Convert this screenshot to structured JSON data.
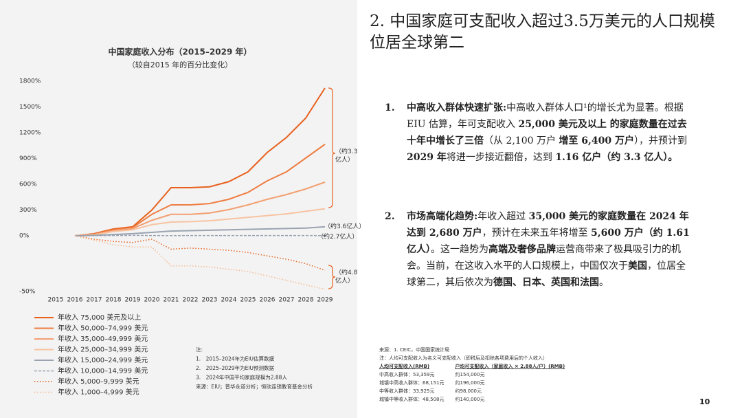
{
  "chart_data": {
    "type": "line",
    "title": "中国家庭收入分布（2015–2029 年）",
    "subtitle": "（较自2015 年的百分比变化）",
    "categories": [
      "2015",
      "2016",
      "2017",
      "2018",
      "2019",
      "2020",
      "2021",
      "2022",
      "2023",
      "2024",
      "2025",
      "2026",
      "2027",
      "2028",
      "2029"
    ],
    "ylim": [
      -50,
      1800
    ],
    "yticks": [
      {
        "value": 1800,
        "label": "1800%"
      },
      {
        "value": 1500,
        "label": "1500%"
      },
      {
        "value": 1200,
        "label": "1200%"
      },
      {
        "value": 900,
        "label": "900%"
      },
      {
        "value": 600,
        "label": "600%"
      },
      {
        "value": 300,
        "label": "300%"
      },
      {
        "value": 0,
        "label": "0%"
      },
      {
        "value": -50,
        "label": "-50%"
      }
    ],
    "series": [
      {
        "name": "年收入 75,000 美元及以上",
        "color": "#e8601c",
        "dash": "solid",
        "values": [
          null,
          0,
          25,
          80,
          105,
          300,
          560,
          560,
          570,
          630,
          745,
          970,
          1145,
          1370,
          1720
        ]
      },
      {
        "name": "年收入 50,000–74,999 美元",
        "color": "#ee7d42",
        "dash": "solid",
        "values": [
          null,
          0,
          20,
          70,
          95,
          250,
          360,
          360,
          375,
          425,
          505,
          640,
          745,
          905,
          1065
        ]
      },
      {
        "name": "年收入 35,000–49,999 美元",
        "color": "#f29f70",
        "dash": "solid",
        "values": [
          null,
          0,
          15,
          60,
          85,
          180,
          250,
          250,
          265,
          305,
          360,
          425,
          480,
          545,
          625
        ]
      },
      {
        "name": "年收入 25,000–34,999 美元",
        "color": "#f7c3a2",
        "dash": "solid",
        "values": [
          null,
          0,
          10,
          50,
          70,
          130,
          160,
          165,
          175,
          195,
          215,
          235,
          255,
          285,
          315
        ]
      },
      {
        "name": "年收入 15,000–24,999 美元",
        "color": "#9aa3b0",
        "dash": "solid",
        "values": [
          null,
          0,
          5,
          15,
          25,
          40,
          55,
          60,
          65,
          70,
          75,
          80,
          85,
          90,
          105
        ]
      },
      {
        "name": "年收入 10,000–14,999 美元",
        "color": "#9aa3b0",
        "dash": "dashed",
        "values": [
          null,
          0,
          2,
          3,
          5,
          3,
          2,
          3,
          3,
          3,
          3,
          3,
          3,
          3,
          2
        ]
      },
      {
        "name": "年收入 5,000–9,999 美元",
        "color": "#e8601c",
        "dash": "dotted",
        "values": [
          null,
          0,
          -3,
          -5,
          -6,
          -3,
          -12,
          -11,
          -12,
          -13,
          -15,
          -18,
          -21,
          -25,
          -31
        ]
      },
      {
        "name": "年收入 1,000–4,999 美元",
        "color": "#f6b890",
        "dash": "dotted",
        "values": [
          null,
          0,
          -4,
          -8,
          -10,
          -10,
          -27,
          -27,
          -28,
          -30,
          -32,
          -36,
          -40,
          -44,
          -48
        ]
      }
    ],
    "annotations": [
      "（约3.3亿人）",
      "（约3.6亿人）",
      "（约2.7亿人）",
      "（约4.8亿人）"
    ],
    "notes": [
      "注:",
      "1.　2015–2024年为EIU估算数据",
      "2.　2025–2029年为EIU预测数据",
      "3.　2024年中国平均家庭规模为2.88人",
      "来源：EIU；普华永道分析；恒欣连锁教育基金分析"
    ]
  },
  "heading": "2. 中国家庭可支配收入超过3.5万美元的人口规模位居全球第二",
  "points": [
    {
      "number": "1.",
      "segments": [
        {
          "text": "中高收入群体快速扩张:",
          "bold": true
        },
        {
          "text": "中高收入群体人口¹的增长尤为显著。根据 EIU 估算，年可支配收入 ",
          "bold": false
        },
        {
          "text": "25,000 美元及以上 的家庭数量在过去十年中增长了三倍",
          "bold": true
        },
        {
          "text": "（从 2,100 万户 ",
          "bold": false
        },
        {
          "text": "增至 6,400 万户",
          "bold": true
        },
        {
          "text": "），并预计到 ",
          "bold": false
        },
        {
          "text": "2029 年",
          "bold": true
        },
        {
          "text": "将进一步接近翻倍，达到 ",
          "bold": false
        },
        {
          "text": "1.16 亿户（约 3.3 亿人）。",
          "bold": true
        }
      ]
    },
    {
      "number": "2.",
      "segments": [
        {
          "text": "市场高端化趋势:",
          "bold": true
        },
        {
          "text": "年收入超过 ",
          "bold": false
        },
        {
          "text": "35,000 美元的家庭数量在 2024 年 达到 2,680 万户",
          "bold": true
        },
        {
          "text": "，预计在未来五年将增至 ",
          "bold": false
        },
        {
          "text": "5,600 万户（约 1.61 亿人）",
          "bold": true
        },
        {
          "text": "。这一趋势为",
          "bold": false
        },
        {
          "text": "高端及奢侈品牌",
          "bold": true
        },
        {
          "text": "运营商带来了极具吸引力的机会。当前，在这收入水平的人口规模上，中国仅次于",
          "bold": false
        },
        {
          "text": "美国",
          "bold": true
        },
        {
          "text": "，位居全球第二，其后依次为",
          "bold": false
        },
        {
          "text": "德国、日本、英国和法国",
          "bold": true
        },
        {
          "text": "。",
          "bold": false
        }
      ]
    }
  ],
  "footnote": {
    "source": "来源：1. CEIC，中国国家统计局",
    "note": "注：人均可支配收入为名义可支配收入（即税后及扣除各项费用后的个人收入）",
    "headers": [
      "人均可支配收入(RMB)",
      "户均可支配收入（家庭收入 × 2.88人/户）(RMB)"
    ],
    "rows": [
      [
        "中高收入群体：53,359元",
        "约154,000元"
      ],
      [
        "城镇中高收入群体：68,151元",
        "约196,000元"
      ],
      [
        "中等收入群体：33,925元",
        "约98,000元"
      ],
      [
        "城镇中等收入群体：48,508元",
        "约140,000元"
      ]
    ]
  },
  "page_number": "10"
}
